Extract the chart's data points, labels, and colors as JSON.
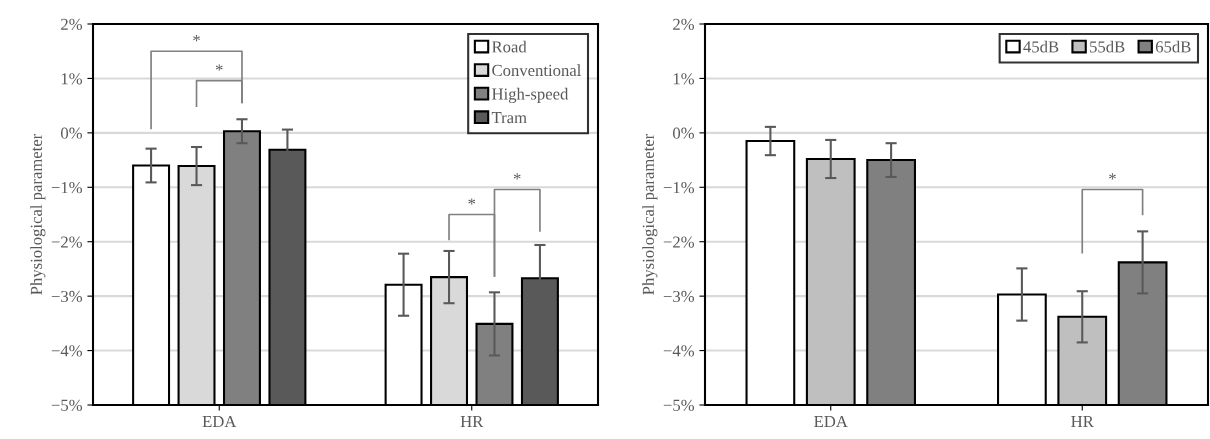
{
  "chart_data": [
    {
      "type": "bar",
      "ylabel": "Physiological parameter",
      "categories": [
        "EDA",
        "HR"
      ],
      "series": [
        {
          "name": "Road",
          "color": "#ffffff",
          "base": [
            -5,
            -5
          ],
          "values": [
            4.4,
            2.21
          ],
          "errors": [
            0.31,
            0.57
          ]
        },
        {
          "name": "Conventional",
          "color": "#d9d9d9",
          "base": [
            -5,
            -5
          ],
          "values": [
            4.39,
            2.35
          ],
          "errors": [
            0.35,
            0.48
          ]
        },
        {
          "name": "High-speed",
          "color": "#808080",
          "base": [
            -5,
            -5
          ],
          "values": [
            5.03,
            1.49
          ],
          "errors": [
            0.22,
            0.58
          ]
        },
        {
          "name": "Tram",
          "color": "#595959",
          "base": [
            -5,
            -5
          ],
          "values": [
            4.69,
            2.33
          ],
          "errors": [
            0.37,
            0.61
          ]
        }
      ],
      "ylim": [
        -5,
        2
      ],
      "yticks": [
        {
          "value": -5,
          "label": "−5%"
        },
        {
          "value": -4,
          "label": "−4%"
        },
        {
          "value": -3,
          "label": "−3%"
        },
        {
          "value": -2,
          "label": "−2%"
        },
        {
          "value": -1,
          "label": "−1%"
        },
        {
          "value": 0,
          "label": "0%"
        },
        {
          "value": 1,
          "label": "1%"
        },
        {
          "value": 2,
          "label": "2%"
        }
      ],
      "grid": "y",
      "legend": "top right",
      "annotations": [
        "*",
        "*",
        "*",
        "*"
      ]
    },
    {
      "type": "bar",
      "ylabel": "Physiological parameter",
      "categories": [
        "EDA",
        "HR"
      ],
      "series": [
        {
          "name": "45dB",
          "color": "#ffffff",
          "base": [
            -5,
            -5
          ],
          "values": [
            4.85,
            2.03
          ],
          "errors": [
            0.26,
            0.48
          ]
        },
        {
          "name": "55dB",
          "color": "#bfbfbf",
          "base": [
            -5,
            -5
          ],
          "values": [
            4.52,
            1.62
          ],
          "errors": [
            0.35,
            0.47
          ]
        },
        {
          "name": "65dB",
          "color": "#808080",
          "base": [
            -5,
            -5
          ],
          "values": [
            4.5,
            2.62
          ],
          "errors": [
            0.31,
            0.57
          ]
        }
      ],
      "ylim": [
        -5,
        2
      ],
      "yticks": [
        {
          "value": -5,
          "label": "−5%"
        },
        {
          "value": -4,
          "label": "−4%"
        },
        {
          "value": -3,
          "label": "−3%"
        },
        {
          "value": -2,
          "label": "−2%"
        },
        {
          "value": -1,
          "label": "−1%"
        },
        {
          "value": 0,
          "label": "0%"
        },
        {
          "value": 1,
          "label": "1%"
        },
        {
          "value": 2,
          "label": "2%"
        }
      ],
      "grid": "y",
      "legend": "top right",
      "annotations": [
        "*"
      ]
    }
  ]
}
